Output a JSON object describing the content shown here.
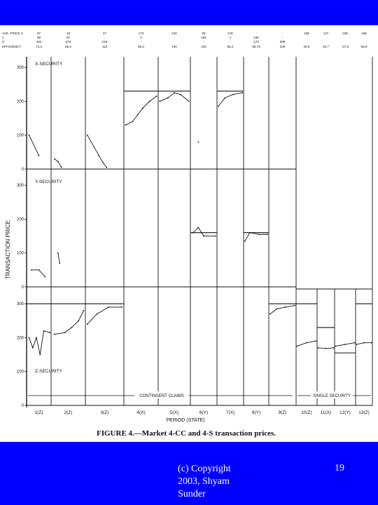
{
  "slide": {
    "background_color": "#0000ff",
    "footer_text_color": "#ffffff",
    "copyright": "(c) Copyright 2003, Shyam Sunder",
    "slide_number": "19"
  },
  "figure": {
    "caption": "FIGURE 4.—Market 4-CC and 4-S transaction prices."
  },
  "chart_data": {
    "type": "line",
    "title": "FIGURE 4.—Market 4-CC and 4-S transaction prices.",
    "xlabel": "PERIOD (STATE)",
    "ylabel": "TRANSACTION PRICE",
    "periods": [
      "1(Z)",
      "2(Z)",
      "3(Z)",
      "4(X)",
      "5(X)",
      "6(Y)",
      "7(X)",
      "8(Y)",
      "9(Z)",
      "10(Z)",
      "11(X)",
      "12(Y)",
      "13(Z)"
    ],
    "y_ticks": [
      "0",
      "100",
      "200",
      "300"
    ],
    "panel_labels": [
      "X-SECURITY",
      "Y-SECURITY",
      "Z-SECURITY"
    ],
    "regime_labels": [
      "CONTINGENT CLAIMS",
      "SINGLE SECURITY"
    ],
    "header_table": {
      "row_labels": [
        "AVE. PRICE  X",
        "Y",
        "Z",
        "EFFICIENCY"
      ],
      "columns": [
        {
          "values": [
            "97",
            "58",
            "181",
            "74.3"
          ]
        },
        {
          "values": [
            "19",
            "57",
            "223",
            "96.3"
          ]
        },
        {
          "values": [
            "27",
            "-",
            "218",
            "110"
          ]
        },
        {
          "values": [
            "170",
            "2",
            "-",
            "88.3"
          ]
        },
        {
          "values": [
            "215",
            "-",
            "-",
            "100"
          ]
        },
        {
          "values": [
            "80",
            "164",
            "-",
            "100"
          ]
        },
        {
          "values": [
            "215",
            "1",
            "-",
            "86.2"
          ]
        },
        {
          "values": [
            "-",
            "158",
            "173",
            "88.75"
          ]
        },
        {
          "values": [
            "-",
            "-",
            "296",
            "100"
          ]
        },
        {
          "values": [
            "165",
            "",
            "",
            "26.5"
          ]
        },
        {
          "values": [
            "147",
            "",
            "",
            "26.7"
          ]
        },
        {
          "values": [
            "150",
            "",
            "",
            "-37.5"
          ]
        },
        {
          "values": [
            "166",
            "",
            "",
            "55.9"
          ]
        }
      ]
    },
    "equilibrium_levels": {
      "X": [
        [
          4,
          5,
          230
        ],
        [
          7,
          7,
          230
        ]
      ],
      "Y": [
        [
          6,
          6,
          160
        ],
        [
          8,
          8,
          160
        ]
      ],
      "Z": [
        [
          1,
          3,
          300
        ],
        [
          9,
          9,
          300
        ],
        [
          10,
          10,
          300
        ],
        [
          11,
          11,
          230
        ],
        [
          12,
          12,
          155
        ],
        [
          13,
          13,
          300
        ]
      ],
      "single_security_zero": [
        10,
        13
      ]
    },
    "series": [
      {
        "panel": "X",
        "points": [
          [
            1,
            0.1,
            100
          ],
          [
            1,
            0.5,
            40
          ],
          [
            2,
            0.1,
            30
          ],
          [
            2,
            0.2,
            22
          ],
          [
            2,
            0.3,
            5
          ],
          [
            3,
            0.05,
            100
          ],
          [
            3,
            0.35,
            40
          ],
          [
            3,
            0.45,
            20
          ],
          [
            3,
            0.55,
            5
          ],
          [
            4,
            0.05,
            130
          ],
          [
            4,
            0.25,
            140
          ],
          [
            4,
            0.4,
            160
          ],
          [
            4,
            0.55,
            180
          ],
          [
            4,
            0.75,
            200
          ],
          [
            4,
            0.95,
            215
          ],
          [
            5,
            0.05,
            200
          ],
          [
            5,
            0.3,
            210
          ],
          [
            5,
            0.5,
            225
          ],
          [
            5,
            0.7,
            220
          ],
          [
            5,
            0.95,
            200
          ],
          [
            6,
            0.3,
            80
          ],
          [
            7,
            0.05,
            185
          ],
          [
            7,
            0.3,
            210
          ],
          [
            7,
            0.6,
            220
          ],
          [
            7,
            0.95,
            225
          ]
        ]
      },
      {
        "panel": "Y",
        "points": [
          [
            1,
            0.2,
            50
          ],
          [
            1,
            0.5,
            50
          ],
          [
            1,
            0.75,
            30
          ],
          [
            2,
            0.2,
            100
          ],
          [
            2,
            0.25,
            70
          ],
          [
            6,
            0.1,
            160
          ],
          [
            6,
            0.3,
            175
          ],
          [
            6,
            0.5,
            150
          ],
          [
            6,
            0.95,
            150
          ],
          [
            8,
            0.05,
            135
          ],
          [
            8,
            0.25,
            160
          ],
          [
            8,
            0.6,
            155
          ],
          [
            8,
            0.95,
            155
          ]
        ]
      },
      {
        "panel": "Z",
        "points": [
          [
            1,
            0.1,
            200
          ],
          [
            1,
            0.25,
            170
          ],
          [
            1,
            0.4,
            200
          ],
          [
            1,
            0.55,
            150
          ],
          [
            1,
            0.7,
            220
          ],
          [
            1,
            0.95,
            215
          ],
          [
            2,
            0.1,
            210
          ],
          [
            2,
            0.4,
            215
          ],
          [
            2,
            0.6,
            230
          ],
          [
            2,
            0.8,
            250
          ],
          [
            2,
            0.95,
            280
          ],
          [
            3,
            0.05,
            240
          ],
          [
            3,
            0.3,
            270
          ],
          [
            3,
            0.6,
            290
          ],
          [
            3,
            0.95,
            290
          ],
          [
            9,
            0.05,
            270
          ],
          [
            9,
            0.3,
            285
          ],
          [
            9,
            0.6,
            290
          ],
          [
            9,
            0.95,
            295
          ],
          [
            10,
            0.05,
            175
          ],
          [
            10,
            0.5,
            185
          ],
          [
            10,
            0.95,
            190
          ],
          [
            11,
            0.05,
            170
          ],
          [
            11,
            0.5,
            168
          ],
          [
            11,
            0.95,
            170
          ],
          [
            12,
            0.05,
            175
          ],
          [
            12,
            0.5,
            180
          ],
          [
            12,
            0.95,
            185
          ],
          [
            13,
            0.05,
            180
          ],
          [
            13,
            0.5,
            185
          ],
          [
            13,
            0.95,
            185
          ]
        ]
      }
    ]
  }
}
